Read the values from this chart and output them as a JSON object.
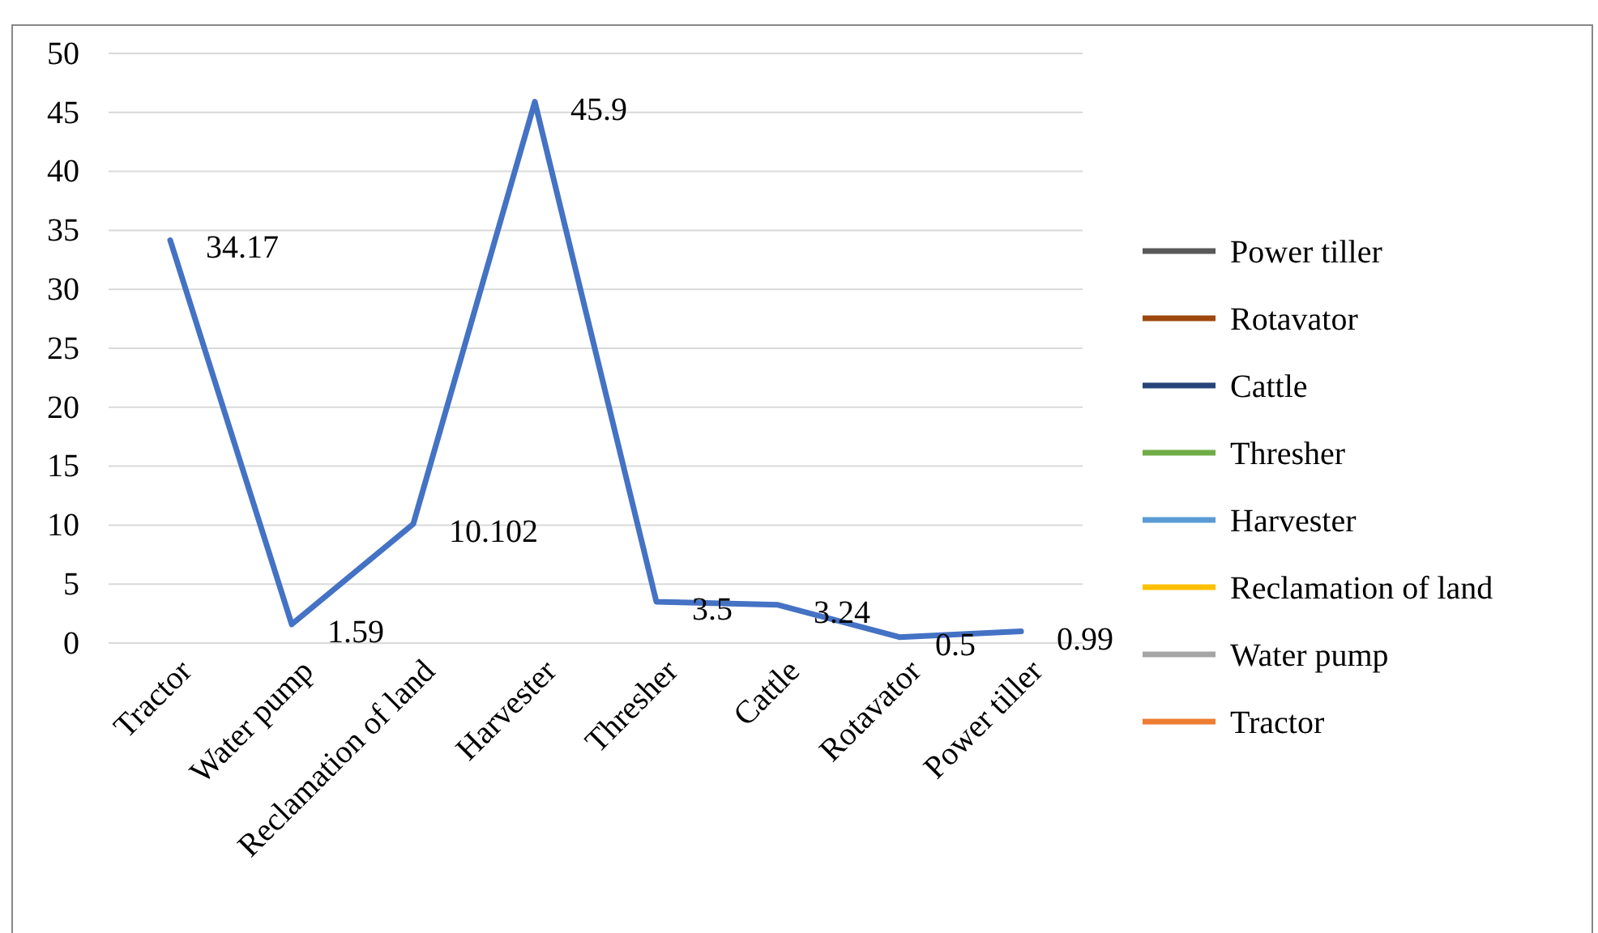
{
  "chart_data": {
    "type": "line",
    "categories": [
      "Tractor",
      "Water pump",
      "Reclamation of land",
      "Harvester",
      "Thresher",
      "Cattle",
      "Rotavator",
      "Power tiller"
    ],
    "series": [
      {
        "color": "#4472c4",
        "values": [
          34.17,
          1.59,
          10.102,
          45.9,
          3.5,
          3.24,
          0.5,
          0.99
        ]
      },
      {
        "name": "Power tiller",
        "color": "#595959",
        "values": [
          null,
          null,
          null,
          null,
          null,
          null,
          null,
          null
        ]
      },
      {
        "name": "Rotavator",
        "color": "#9e480e",
        "values": [
          null,
          null,
          null,
          null,
          null,
          null,
          null,
          null
        ]
      },
      {
        "name": "Cattle",
        "color": "#264478",
        "values": [
          null,
          null,
          null,
          null,
          null,
          null,
          null,
          null
        ]
      },
      {
        "name": "Thresher",
        "color": "#70ad47",
        "values": [
          null,
          null,
          null,
          null,
          null,
          null,
          null,
          null
        ]
      },
      {
        "name": "Harvester",
        "color": "#5b9bd5",
        "values": [
          null,
          null,
          null,
          null,
          null,
          null,
          null,
          null
        ]
      },
      {
        "name": "Reclamation of land",
        "color": "#ffc000",
        "values": [
          null,
          null,
          null,
          null,
          null,
          null,
          null,
          null
        ]
      },
      {
        "name": "Water pump",
        "color": "#a5a5a5",
        "values": [
          null,
          null,
          null,
          null,
          null,
          null,
          null,
          null
        ]
      },
      {
        "name": "Tractor",
        "color": "#ed7d31",
        "values": [
          null,
          null,
          null,
          null,
          null,
          null,
          null,
          null
        ]
      }
    ],
    "ylim": [
      0,
      50
    ],
    "yticks": [
      0,
      5,
      10,
      15,
      20,
      25,
      30,
      35,
      40,
      45,
      50
    ],
    "grid": "y",
    "legend": "right",
    "data_labels": true,
    "marker": "none",
    "line_style": "solid"
  }
}
